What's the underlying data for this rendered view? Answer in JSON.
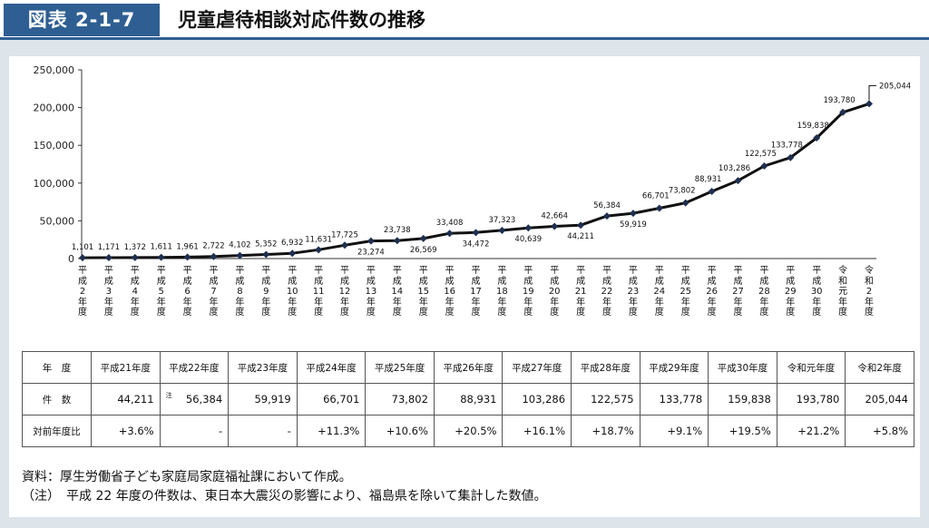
{
  "header": {
    "tag": "図表 2-1-7",
    "title": "児童虐待相談対応件数の推移"
  },
  "colors": {
    "accent": "#2f5f92",
    "line": "#111111",
    "marker": "#1f2f4f"
  },
  "chart_data": {
    "type": "line",
    "title": "",
    "xlabel": "",
    "ylabel": "",
    "ylim": [
      0,
      250000
    ],
    "yticks": [
      "0",
      "50,000",
      "100,000",
      "150,000",
      "200,000",
      "250,000"
    ],
    "grid": false,
    "categories": [
      "平成2年度",
      "平成3年度",
      "平成4年度",
      "平成5年度",
      "平成6年度",
      "平成7年度",
      "平成8年度",
      "平成9年度",
      "平成10年度",
      "平成11年度",
      "平成12年度",
      "平成13年度",
      "平成14年度",
      "平成15年度",
      "平成16年度",
      "平成17年度",
      "平成18年度",
      "平成19年度",
      "平成20年度",
      "平成21年度",
      "平成22年度",
      "平成23年度",
      "平成24年度",
      "平成25年度",
      "平成26年度",
      "平成27年度",
      "平成28年度",
      "平成29年度",
      "平成30年度",
      "令和元年度",
      "令和2年度"
    ],
    "values": [
      1101,
      1171,
      1372,
      1611,
      1961,
      2722,
      4102,
      5352,
      6932,
      11631,
      17725,
      23274,
      23738,
      26569,
      33408,
      34472,
      37323,
      40639,
      42664,
      44211,
      56384,
      59919,
      66701,
      73802,
      88931,
      103286,
      122575,
      133778,
      159838,
      193780,
      205044
    ],
    "labels": [
      "1,101",
      "1,171",
      "1,372",
      "1,611",
      "1,961",
      "2,722",
      "4,102",
      "5,352",
      "6,932",
      "11,631",
      "17,725",
      "23,274",
      "23,738",
      "26,569",
      "33,408",
      "34,472",
      "37,323",
      "40,639",
      "42,664",
      "44,211",
      "56,384",
      "59,919",
      "66,701",
      "73,802",
      "88,931",
      "103,286",
      "122,575",
      "133,778",
      "159,838",
      "193,780",
      "205,044"
    ]
  },
  "table": {
    "headers": [
      "年　度",
      "平成21年度",
      "平成22年度",
      "平成23年度",
      "平成24年度",
      "平成25年度",
      "平成26年度",
      "平成27年度",
      "平成28年度",
      "平成29年度",
      "平成30年度",
      "令和元年度",
      "令和2年度"
    ],
    "rows": [
      {
        "label": "件　数",
        "cells": [
          "44,211",
          "56,384",
          "59,919",
          "66,701",
          "73,802",
          "88,931",
          "103,286",
          "122,575",
          "133,778",
          "159,838",
          "193,780",
          "205,044"
        ]
      },
      {
        "label": "対前年度比",
        "cells": [
          "+3.6%",
          "-",
          "-",
          "+11.3%",
          "+10.6%",
          "+20.5%",
          "+16.1%",
          "+18.7%",
          "+9.1%",
          "+19.5%",
          "+21.2%",
          "+5.8%"
        ]
      }
    ],
    "note_mark": "注"
  },
  "notes": {
    "source": "資料：厚生労働省子ども家庭局家庭福祉課において作成。",
    "note": "（注）　平成 22 年度の件数は、東日本大震災の影響により、福島県を除いて集計した数値。"
  }
}
